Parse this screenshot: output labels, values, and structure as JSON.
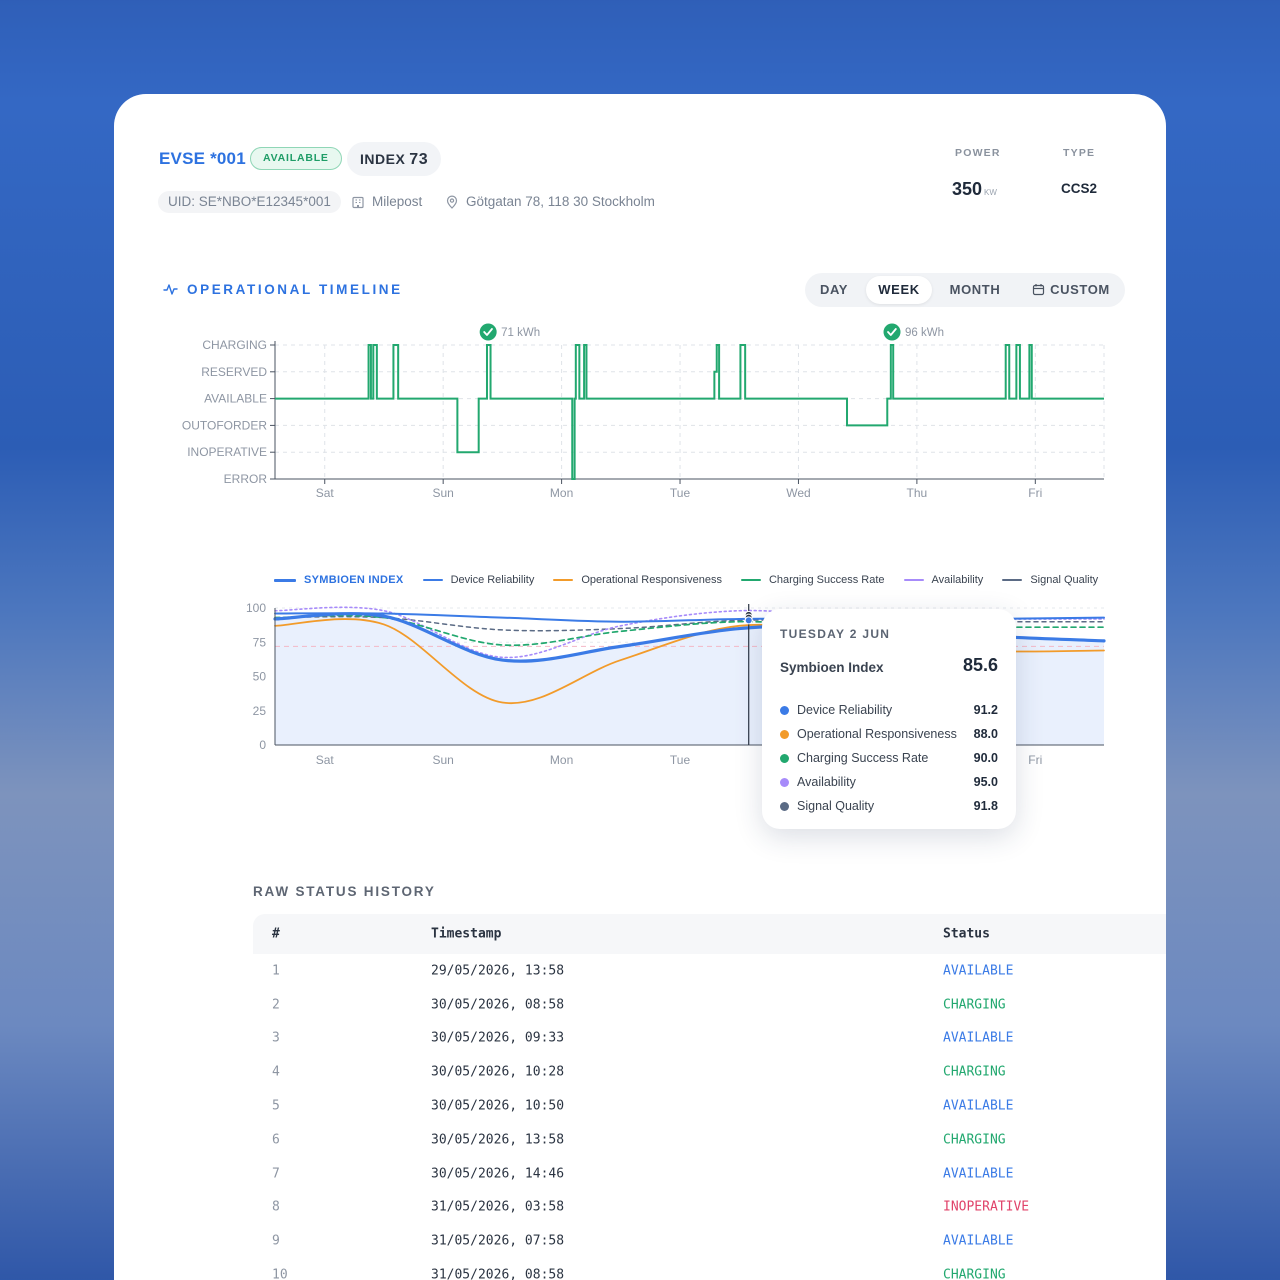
{
  "header": {
    "evse_title": "EVSE *001",
    "status_badge": "AVAILABLE",
    "index_label": "INDEX",
    "index_value": "73",
    "uid": "UID: SE*NBO*E12345*001",
    "operator": "Milepost",
    "address": "Götgatan 78, 118 30 Stockholm",
    "power_label": "POWER",
    "power_value": "350",
    "power_unit": "KW",
    "type_label": "TYPE",
    "type_value": "CCS2"
  },
  "timeline": {
    "title": "OPERATIONAL TIMELINE",
    "ranges": [
      "DAY",
      "WEEK",
      "MONTH",
      "CUSTOM"
    ],
    "active_range": "WEEK",
    "accent": "#22a86f"
  },
  "chart_data": [
    {
      "type": "line",
      "title": "",
      "step": true,
      "y_categories": [
        "CHARGING",
        "RESERVED",
        "AVAILABLE",
        "OUTOFORDER",
        "INOPERATIVE",
        "ERROR"
      ],
      "x_ticks": [
        "Sat",
        "Sun",
        "Mon",
        "Tue",
        "Wed",
        "Thu",
        "Fri"
      ],
      "x_range_days": [
        -0.42,
        6.58
      ],
      "grid": true,
      "session_annotations": [
        {
          "x_day": 1.38,
          "label": "71 kWh"
        },
        {
          "x_day": 4.79,
          "label": "96 kWh"
        }
      ],
      "series": [
        {
          "values": [
            [
              -0.42,
              "AVAILABLE"
            ],
            [
              0.37,
              "CHARGING"
            ],
            [
              0.39,
              "AVAILABLE"
            ],
            [
              0.41,
              "CHARGING"
            ],
            [
              0.44,
              "AVAILABLE"
            ],
            [
              0.58,
              "CHARGING"
            ],
            [
              0.62,
              "AVAILABLE"
            ],
            [
              1.12,
              "INOPERATIVE"
            ],
            [
              1.3,
              "AVAILABLE"
            ],
            [
              1.37,
              "CHARGING"
            ],
            [
              1.4,
              "AVAILABLE"
            ],
            [
              2.09,
              "ERROR"
            ],
            [
              2.11,
              "AVAILABLE"
            ],
            [
              2.12,
              "CHARGING"
            ],
            [
              2.15,
              "AVAILABLE"
            ],
            [
              2.19,
              "CHARGING"
            ],
            [
              2.21,
              "AVAILABLE"
            ],
            [
              3.29,
              "RESERVED"
            ],
            [
              3.31,
              "CHARGING"
            ],
            [
              3.33,
              "AVAILABLE"
            ],
            [
              3.51,
              "CHARGING"
            ],
            [
              3.55,
              "AVAILABLE"
            ],
            [
              4.41,
              "OUTOFORDER"
            ],
            [
              4.75,
              "AVAILABLE"
            ],
            [
              4.78,
              "CHARGING"
            ],
            [
              4.8,
              "AVAILABLE"
            ],
            [
              5.75,
              "CHARGING"
            ],
            [
              5.78,
              "AVAILABLE"
            ],
            [
              5.84,
              "CHARGING"
            ],
            [
              5.87,
              "AVAILABLE"
            ],
            [
              5.95,
              "CHARGING"
            ],
            [
              5.97,
              "AVAILABLE"
            ],
            [
              6.58,
              "AVAILABLE"
            ]
          ]
        }
      ]
    },
    {
      "type": "line",
      "title": "",
      "x_ticks": [
        "Sat",
        "Sun",
        "Mon",
        "Tue",
        "Wed",
        "Thu",
        "Fri"
      ],
      "x_range_days": [
        -0.42,
        6.58
      ],
      "y_ticks": [
        0,
        25,
        50,
        75,
        100
      ],
      "ylim": [
        0,
        100
      ],
      "grid": true,
      "legend_position": "top",
      "series": [
        {
          "name": "SYMBIOEN INDEX",
          "color": "#3b7be6",
          "x": [
            -0.42,
            0.5,
            1.5,
            2.5,
            3.5,
            4.5,
            5.5,
            6.58
          ],
          "values": [
            92,
            94,
            62,
            72,
            85,
            87,
            80,
            76
          ]
        },
        {
          "name": "Device Reliability",
          "color": "#3b7be6",
          "x": [
            -0.42,
            0.5,
            1.5,
            2.5,
            3.5,
            4.5,
            5.5,
            6.58
          ],
          "values": [
            96,
            96,
            93,
            90,
            92,
            92,
            92,
            93
          ]
        },
        {
          "name": "Operational Responsiveness",
          "color": "#f29b2a",
          "x": [
            -0.42,
            0.5,
            1.5,
            2.5,
            3.5,
            4.5,
            5.5,
            6.58
          ],
          "values": [
            87,
            88,
            31,
            62,
            87,
            80,
            69,
            69
          ]
        },
        {
          "name": "Charging Success Rate",
          "color": "#22a86f",
          "x": [
            -0.42,
            0.5,
            1.5,
            2.5,
            3.5,
            4.5,
            5.5,
            6.58
          ],
          "values": [
            93,
            93,
            73,
            83,
            90,
            86,
            86,
            86
          ]
        },
        {
          "name": "Availability",
          "color": "#a78bfa",
          "x": [
            -0.42,
            0.5,
            1.5,
            2.5,
            3.5,
            4.5,
            5.5,
            6.58
          ],
          "values": [
            98,
            98,
            64,
            87,
            98,
            93,
            92,
            92
          ]
        },
        {
          "name": "Signal Quality",
          "color": "#5b6b85",
          "x": [
            -0.42,
            0.5,
            1.5,
            2.5,
            3.5,
            4.5,
            5.5,
            6.58
          ],
          "values": [
            93,
            93,
            84,
            85,
            91,
            90,
            90,
            90
          ]
        }
      ],
      "hover_x_day": 3.58
    }
  ],
  "tooltip": {
    "date": "TUESDAY 2 JUN",
    "main_label": "Symbioen Index",
    "main_value": "85.6",
    "rows": [
      {
        "label": "Device Reliability",
        "value": "91.2",
        "color": "#3b7be6"
      },
      {
        "label": "Operational Responsiveness",
        "value": "88.0",
        "color": "#f29b2a"
      },
      {
        "label": "Charging Success Rate",
        "value": "90.0",
        "color": "#22a86f"
      },
      {
        "label": "Availability",
        "value": "95.0",
        "color": "#a78bfa"
      },
      {
        "label": "Signal Quality",
        "value": "91.8",
        "color": "#5b6b85"
      }
    ]
  },
  "raw_history": {
    "title": "RAW STATUS HISTORY",
    "columns": [
      "#",
      "Timestamp",
      "Status"
    ],
    "rows": [
      {
        "n": "1",
        "ts": "29/05/2026, 13:58",
        "status": "AVAILABLE"
      },
      {
        "n": "2",
        "ts": "30/05/2026, 08:58",
        "status": "CHARGING"
      },
      {
        "n": "3",
        "ts": "30/05/2026, 09:33",
        "status": "AVAILABLE"
      },
      {
        "n": "4",
        "ts": "30/05/2026, 10:28",
        "status": "CHARGING"
      },
      {
        "n": "5",
        "ts": "30/05/2026, 10:50",
        "status": "AVAILABLE"
      },
      {
        "n": "6",
        "ts": "30/05/2026, 13:58",
        "status": "CHARGING"
      },
      {
        "n": "7",
        "ts": "30/05/2026, 14:46",
        "status": "AVAILABLE"
      },
      {
        "n": "8",
        "ts": "31/05/2026, 03:58",
        "status": "INOPERATIVE"
      },
      {
        "n": "9",
        "ts": "31/05/2026, 07:58",
        "status": "AVAILABLE"
      },
      {
        "n": "10",
        "ts": "31/05/2026, 08:58",
        "status": "CHARGING"
      }
    ],
    "status_colors": {
      "AVAILABLE": "#3b7be6",
      "CHARGING": "#22a86f",
      "INOPERATIVE": "#e0436a"
    }
  }
}
